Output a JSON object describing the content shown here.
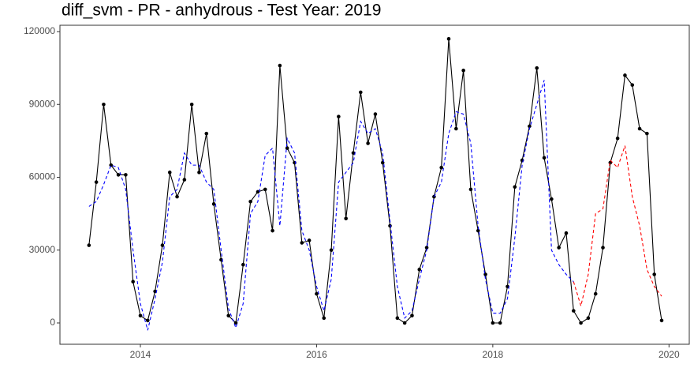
{
  "chart_data": {
    "type": "line",
    "title": "diff_svm - PR - anhydrous - Test Year: 2019",
    "x": [
      "2013-06",
      "2013-07",
      "2013-08",
      "2013-09",
      "2013-10",
      "2013-11",
      "2013-12",
      "2014-01",
      "2014-02",
      "2014-03",
      "2014-04",
      "2014-05",
      "2014-06",
      "2014-07",
      "2014-08",
      "2014-09",
      "2014-10",
      "2014-11",
      "2014-12",
      "2015-01",
      "2015-02",
      "2015-03",
      "2015-04",
      "2015-05",
      "2015-06",
      "2015-07",
      "2015-08",
      "2015-09",
      "2015-10",
      "2015-11",
      "2015-12",
      "2016-01",
      "2016-02",
      "2016-03",
      "2016-04",
      "2016-05",
      "2016-06",
      "2016-07",
      "2016-08",
      "2016-09",
      "2016-10",
      "2016-11",
      "2016-12",
      "2017-01",
      "2017-02",
      "2017-03",
      "2017-04",
      "2017-05",
      "2017-06",
      "2017-07",
      "2017-08",
      "2017-09",
      "2017-10",
      "2017-11",
      "2017-12",
      "2018-01",
      "2018-02",
      "2018-03",
      "2018-04",
      "2018-05",
      "2018-06",
      "2018-07",
      "2018-08",
      "2018-09",
      "2018-10",
      "2018-11",
      "2018-12",
      "2019-01",
      "2019-02",
      "2019-03",
      "2019-04",
      "2019-05",
      "2019-06",
      "2019-07",
      "2019-08",
      "2019-09",
      "2019-10",
      "2019-11",
      "2019-12"
    ],
    "series": [
      {
        "color": "#000000",
        "dash": false,
        "markers": true,
        "values": [
          32000,
          58000,
          90000,
          65000,
          61000,
          61000,
          17000,
          3000,
          1000,
          13000,
          32000,
          62000,
          52000,
          59000,
          90000,
          62000,
          78000,
          49000,
          26000,
          3000,
          0,
          24000,
          50000,
          54000,
          55000,
          38000,
          106000,
          72000,
          66000,
          33000,
          34000,
          12000,
          2000,
          30000,
          85000,
          43000,
          70000,
          95000,
          74000,
          86000,
          66000,
          40000,
          2000,
          0,
          3000,
          22000,
          31000,
          52000,
          64000,
          117000,
          80000,
          104000,
          55000,
          38000,
          20000,
          0,
          0,
          15000,
          56000,
          67000,
          81000,
          105000,
          68000,
          51000,
          31000,
          37000,
          5000,
          0,
          2000,
          12000,
          31000,
          66000,
          76000,
          102000,
          98000,
          80000,
          78000,
          20000,
          1000
        ]
      },
      {
        "color": "#0000ff",
        "dash": true,
        "markers": false,
        "values": [
          48000,
          50000,
          57000,
          65000,
          64000,
          55000,
          30000,
          8000,
          -3000,
          10000,
          25000,
          52000,
          55000,
          70000,
          65000,
          65000,
          58000,
          55000,
          30000,
          6000,
          -2000,
          8000,
          45000,
          50000,
          69000,
          72000,
          40000,
          76000,
          70000,
          38000,
          30000,
          15000,
          5000,
          18000,
          58000,
          62000,
          66000,
          83000,
          78000,
          80000,
          70000,
          42000,
          15000,
          2000,
          5000,
          18000,
          30000,
          52000,
          58000,
          78000,
          87000,
          86000,
          74000,
          40000,
          18000,
          4000,
          4000,
          10000,
          35000,
          65000,
          80000,
          90000,
          100000,
          30000,
          24000,
          20000,
          17000,
          null,
          null,
          null,
          null,
          null,
          null,
          null,
          null,
          null,
          null,
          null,
          null
        ]
      },
      {
        "color": "#ff0000",
        "dash": true,
        "markers": false,
        "values": [
          null,
          null,
          null,
          null,
          null,
          null,
          null,
          null,
          null,
          null,
          null,
          null,
          null,
          null,
          null,
          null,
          null,
          null,
          null,
          null,
          null,
          null,
          null,
          null,
          null,
          null,
          null,
          null,
          null,
          null,
          null,
          null,
          null,
          null,
          null,
          null,
          null,
          null,
          null,
          null,
          null,
          null,
          null,
          null,
          null,
          null,
          null,
          null,
          null,
          null,
          null,
          null,
          null,
          null,
          null,
          null,
          null,
          null,
          null,
          null,
          null,
          null,
          null,
          null,
          null,
          null,
          17000,
          7000,
          20000,
          45000,
          47000,
          67000,
          64000,
          73000,
          52000,
          40000,
          22000,
          15000,
          11000
        ]
      }
    ],
    "xlim": [
      2013.087,
      2020.23
    ],
    "xticks": [
      2014,
      2016,
      2018,
      2020
    ],
    "ylim": [
      -8780,
      122600
    ],
    "yticks": [
      0,
      30000,
      60000,
      90000,
      120000
    ]
  }
}
